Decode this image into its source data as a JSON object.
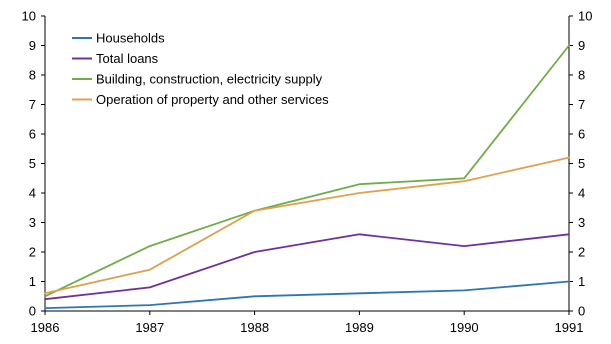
{
  "chart_data": {
    "type": "line",
    "title": "",
    "xlabel": "",
    "ylabel": "",
    "x": [
      1986,
      1987,
      1988,
      1989,
      1990,
      1991
    ],
    "x_tick_labels": [
      "1986",
      "1987",
      "1988",
      "1989",
      "1990",
      "1991"
    ],
    "y_tick_labels": [
      "0",
      "1",
      "2",
      "3",
      "4",
      "5",
      "6",
      "7",
      "8",
      "9",
      "10"
    ],
    "ylim": [
      0,
      10
    ],
    "xlim": [
      1986,
      1991
    ],
    "secondary_y_axis": true,
    "grid": false,
    "legend_position": "top-left",
    "series": [
      {
        "name": "Households",
        "color": "#2e75b6",
        "values": [
          0.1,
          0.2,
          0.5,
          0.6,
          0.7,
          1.0
        ]
      },
      {
        "name": "Total loans",
        "color": "#7030a0",
        "values": [
          0.4,
          0.8,
          2.0,
          2.6,
          2.2,
          2.6
        ]
      },
      {
        "name": "Building, construction, electricity supply",
        "color": "#70ad47",
        "values": [
          0.5,
          2.2,
          3.4,
          4.3,
          4.5,
          9.0
        ]
      },
      {
        "name": "Operation of property and other services",
        "color": "#e0a050",
        "values": [
          0.6,
          1.4,
          3.4,
          4.0,
          4.4,
          5.2
        ]
      }
    ]
  }
}
